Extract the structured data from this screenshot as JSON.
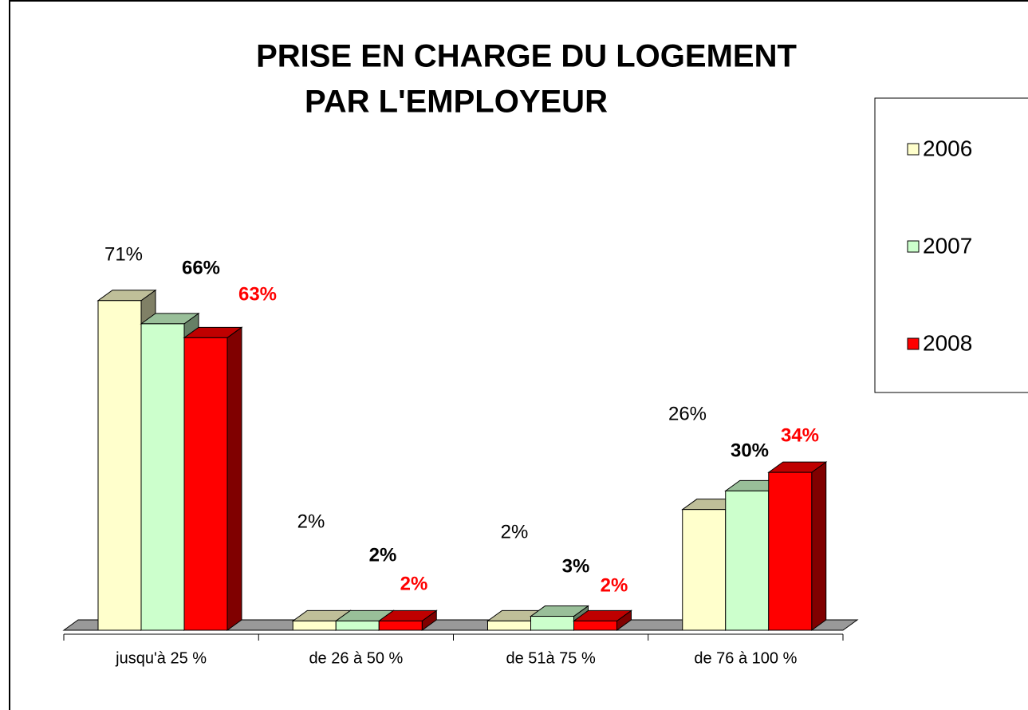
{
  "chart_data": {
    "type": "bar3d",
    "title": [
      "PRISE EN CHARGE DU LOGEMENT",
      "PAR L'EMPLOYEUR"
    ],
    "categories": [
      "jusqu'à 25 %",
      "de 26 à 50 %",
      "de 51à 75 %",
      "de 76 à 100 %"
    ],
    "series": [
      {
        "name": "2006",
        "color": "#ffffcc",
        "values": [
          71,
          2,
          2,
          26
        ],
        "value_labels": [
          "71%",
          "2%",
          "2%",
          "26%"
        ]
      },
      {
        "name": "2007",
        "color": "#ccffcc",
        "values": [
          66,
          2,
          3,
          30
        ],
        "value_labels": [
          "66%",
          "2%",
          "3%",
          "30%"
        ]
      },
      {
        "name": "2008",
        "color": "#ff0000",
        "values": [
          63,
          2,
          2,
          34
        ],
        "value_labels": [
          "63%",
          "2%",
          "2%",
          "34%"
        ]
      }
    ]
  }
}
